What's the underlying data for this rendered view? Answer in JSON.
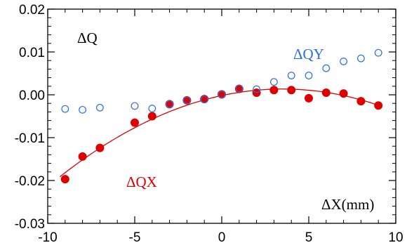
{
  "chart_data": {
    "type": "scatter",
    "xlim": [
      -10,
      10
    ],
    "ylim": [
      -0.03,
      0.02
    ],
    "x_ticks": [
      -10,
      -5,
      0,
      5,
      10
    ],
    "y_ticks": [
      -0.03,
      -0.02,
      -0.01,
      0.0,
      0.01,
      0.02
    ],
    "x_tick_labels": [
      "-10",
      "-5",
      "0",
      "5",
      "10"
    ],
    "y_tick_labels": [
      "-0.03",
      "-0.02",
      "-0.01",
      "0.00",
      "0.01",
      "0.02"
    ],
    "x_minor_step": 1,
    "y_minor_step": 0.002,
    "grid": false,
    "ylabel": "ΔQ",
    "xlabel": "ΔX(mm)",
    "series": [
      {
        "name": "ΔQX",
        "marker": "filled-circle",
        "color": "#dd0000",
        "x": [
          -9,
          -8,
          -7,
          -5,
          -4,
          -3,
          -2,
          -1,
          0,
          1,
          2,
          3,
          4,
          5,
          6,
          7,
          8,
          9
        ],
        "y": [
          -0.0197,
          -0.0144,
          -0.0124,
          -0.0065,
          -0.005,
          -0.0022,
          -0.0013,
          -0.001,
          0.0001,
          0.0014,
          0.0005,
          0.0011,
          0.0011,
          -0.0008,
          0.0005,
          0.0003,
          -0.0015,
          -0.0025
        ]
      },
      {
        "name": "ΔQY",
        "marker": "open-circle",
        "color": "#2a6fdb",
        "x": [
          -9,
          -8,
          -7,
          -5,
          -4,
          -3,
          -2,
          -1,
          0,
          1,
          2,
          3,
          4,
          5,
          6,
          7,
          8,
          9
        ],
        "y": [
          -0.0033,
          -0.0035,
          -0.003,
          -0.0026,
          -0.0032,
          -0.0022,
          -0.0013,
          -0.0011,
          0.0001,
          0.0015,
          0.0013,
          0.003,
          0.0045,
          0.0045,
          0.0062,
          0.0078,
          0.0085,
          0.0098
        ]
      }
    ],
    "fit": {
      "series": "ΔQX",
      "type": "quadratic",
      "color": "#dd0000",
      "x_range": [
        -9.3,
        9.0
      ],
      "y_min": 0.00135,
      "x_at_y_min_peak": 3.5,
      "curvature": -0.000125
    }
  }
}
